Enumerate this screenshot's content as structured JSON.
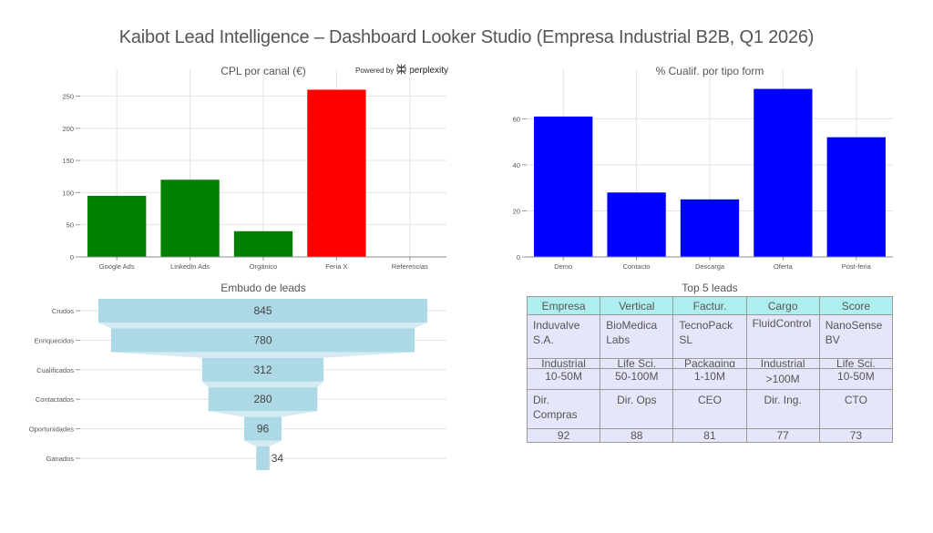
{
  "title": "Kaibot Lead Intelligence – Dashboard Looker Studio (Empresa Industrial B2B, Q1 2026)",
  "powered_by": {
    "prefix": "Powered by",
    "brand": "perplexity"
  },
  "chart_data": [
    {
      "type": "bar",
      "title": "CPL por canal (€)",
      "categories": [
        "Google Ads",
        "LinkedIn Ads",
        "Orgánico",
        "Feria X",
        "Referencias"
      ],
      "values": [
        95,
        120,
        40,
        260,
        0
      ],
      "colors": [
        "#008000",
        "#008000",
        "#008000",
        "#ff0000",
        "#008000"
      ],
      "yticks": [
        0,
        50,
        100,
        150,
        200,
        250
      ],
      "ylim": [
        0,
        272
      ],
      "xlabel": "",
      "ylabel": "",
      "grid": true
    },
    {
      "type": "bar",
      "title": "% Cualif. por tipo form",
      "categories": [
        "Demo",
        "Contacto",
        "Descarga",
        "Oferta",
        "Post-feria"
      ],
      "values": [
        61,
        28,
        25,
        73,
        52
      ],
      "colors": [
        "#0000ff",
        "#0000ff",
        "#0000ff",
        "#0000ff",
        "#0000ff"
      ],
      "yticks": [
        0,
        20,
        40,
        60
      ],
      "ylim": [
        0,
        76
      ],
      "xlabel": "",
      "ylabel": "",
      "grid": true
    },
    {
      "type": "funnel",
      "title": "Embudo de leads",
      "categories": [
        "Crudos",
        "Enriquecidos",
        "Cualificados",
        "Contactados",
        "Oportunidades",
        "Ganados"
      ],
      "values": [
        845,
        780,
        312,
        280,
        96,
        34
      ],
      "color": "#add8e6",
      "connector_color": "#d4ebf2"
    },
    {
      "type": "table",
      "title": "Top 5 leads",
      "header": [
        "Empresa",
        "Vertical",
        "Factur.",
        "Cargo",
        "Score"
      ],
      "header_color": "#afeeee",
      "cell_color": "#e6e6fa",
      "rows": [
        [
          "Induvalve S.A.",
          "BioMedica Labs",
          "TecnoPack SL",
          "FluidControl",
          "NanoSense BV"
        ],
        [
          "Industrial",
          "Life Sci.",
          "Packaging",
          "Industrial",
          "Life Sci."
        ],
        [
          "10-50M",
          "50-100M",
          "1-10M",
          ">100M",
          "10-50M"
        ],
        [
          "Dir. Compras",
          "Dir. Ops",
          "CEO",
          "Dir. Ing.",
          "CTO"
        ],
        [
          "92",
          "88",
          "81",
          "77",
          "73"
        ]
      ]
    }
  ]
}
